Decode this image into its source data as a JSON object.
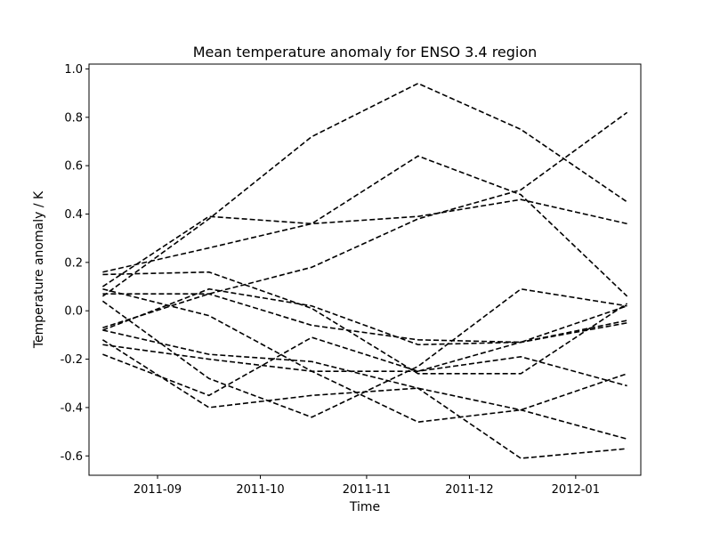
{
  "chart_data": {
    "type": "line",
    "title": "Mean temperature anomaly for ENSO 3.4 region",
    "xlabel": "Time",
    "ylabel": "Temperature anomaly / K",
    "x": [
      "2011-08-16",
      "2011-09-16",
      "2011-10-16",
      "2011-11-16",
      "2011-12-16",
      "2012-01-16"
    ],
    "xlim": [
      "2011-08-12",
      "2012-01-20"
    ],
    "ylim": [
      -0.68,
      1.02
    ],
    "xticks": [
      "2011-09",
      "2011-10",
      "2011-11",
      "2011-12",
      "2012-01"
    ],
    "yticks": [
      "-0.6",
      "-0.4",
      "-0.2",
      "0.0",
      "0.2",
      "0.4",
      "0.6",
      "0.8",
      "1.0"
    ],
    "grid": false,
    "line_style": "dashed",
    "line_color": "#000000",
    "series": [
      {
        "values": [
          0.1,
          0.39,
          0.36,
          0.39,
          0.46,
          0.36
        ]
      },
      {
        "values": [
          0.06,
          0.38,
          0.72,
          0.94,
          0.75,
          0.45
        ]
      },
      {
        "values": [
          0.16,
          0.26,
          0.36,
          0.64,
          0.48,
          0.06
        ]
      },
      {
        "values": [
          -0.07,
          0.07,
          0.18,
          0.38,
          0.5,
          0.82
        ]
      },
      {
        "values": [
          0.15,
          0.16,
          0.01,
          -0.26,
          -0.26,
          0.03
        ]
      },
      {
        "values": [
          0.07,
          0.07,
          -0.06,
          -0.12,
          -0.13,
          0.02
        ]
      },
      {
        "values": [
          -0.08,
          0.09,
          0.02,
          -0.14,
          -0.13,
          -0.04
        ]
      },
      {
        "values": [
          0.04,
          -0.28,
          -0.44,
          -0.23,
          0.09,
          0.02
        ]
      },
      {
        "values": [
          0.09,
          -0.02,
          -0.25,
          -0.46,
          -0.41,
          -0.26
        ]
      },
      {
        "values": [
          -0.08,
          -0.18,
          -0.21,
          -0.32,
          -0.61,
          -0.57
        ]
      },
      {
        "values": [
          -0.14,
          -0.2,
          -0.25,
          -0.25,
          -0.19,
          -0.31
        ]
      },
      {
        "values": [
          -0.12,
          -0.4,
          -0.35,
          -0.32,
          -0.41,
          -0.53
        ]
      },
      {
        "values": [
          -0.18,
          -0.35,
          -0.11,
          -0.25,
          -0.13,
          -0.05
        ]
      }
    ]
  }
}
